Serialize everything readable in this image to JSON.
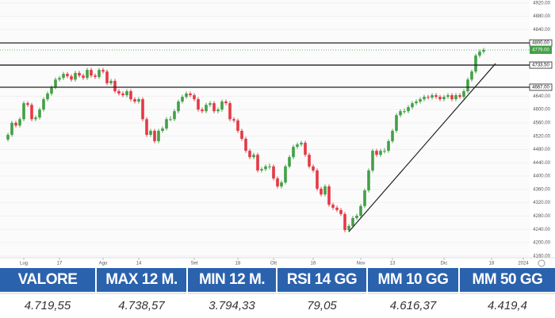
{
  "chart_data": {
    "type": "candlestick",
    "up_color": "#43a047",
    "down_color": "#e53945",
    "ylim": [
      4150,
      4929
    ],
    "yticks": [
      {
        "value": 4920,
        "label": "4920.00"
      },
      {
        "value": 4880,
        "label": "4880.00"
      },
      {
        "value": 4840,
        "label": "4840.00"
      },
      {
        "value": 4640,
        "label": "4640.00"
      },
      {
        "value": 4600,
        "label": "4600.00"
      },
      {
        "value": 4560,
        "label": "4560.00"
      },
      {
        "value": 4520,
        "label": "4520.00"
      },
      {
        "value": 4480,
        "label": "4480.00"
      },
      {
        "value": 4440,
        "label": "4440.00"
      },
      {
        "value": 4400,
        "label": "4400.00"
      },
      {
        "value": 4360,
        "label": "4360.00"
      },
      {
        "value": 4320,
        "label": "4320.00"
      },
      {
        "value": 4280,
        "label": "4280.00"
      },
      {
        "value": 4240,
        "label": "4240.00"
      },
      {
        "value": 4200,
        "label": "4200.00"
      },
      {
        "value": 4160,
        "label": "4160.00"
      }
    ],
    "xlim": [
      -2,
      132
    ],
    "xticks": [
      {
        "value": 4,
        "label": "Lug"
      },
      {
        "value": 13,
        "label": "17"
      },
      {
        "value": 24,
        "label": "Ago"
      },
      {
        "value": 33,
        "label": "14"
      },
      {
        "value": 47,
        "label": "Set"
      },
      {
        "value": 58,
        "label": "18"
      },
      {
        "value": 67,
        "label": "Ott"
      },
      {
        "value": 77,
        "label": "16"
      },
      {
        "value": 89,
        "label": "Nov"
      },
      {
        "value": 97,
        "label": "13"
      },
      {
        "value": 110,
        "label": "Dic"
      },
      {
        "value": 122,
        "label": "18"
      },
      {
        "value": 130,
        "label": "2024"
      }
    ],
    "levels": [
      {
        "value": 4800,
        "label": "4800.00"
      },
      {
        "value": 4733.5,
        "label": "4733.50"
      },
      {
        "value": 4667,
        "label": "4667.00"
      }
    ],
    "last_price": {
      "value": 4779,
      "label": "4779.00"
    },
    "trendline": {
      "x": [
        86,
        123
      ],
      "y": [
        4233,
        4738
      ]
    },
    "candles": [
      [
        4510,
        4530,
        4504,
        4524
      ],
      [
        4524,
        4566,
        4518,
        4560
      ],
      [
        4560,
        4566,
        4546,
        4552
      ],
      [
        4552,
        4577,
        4546,
        4571
      ],
      [
        4571,
        4625,
        4565,
        4619
      ],
      [
        4619,
        4625,
        4608,
        4614
      ],
      [
        4614,
        4620,
        4565,
        4571
      ],
      [
        4571,
        4582,
        4565,
        4576
      ],
      [
        4576,
        4606,
        4570,
        4600
      ],
      [
        4600,
        4637,
        4594,
        4631
      ],
      [
        4631,
        4654,
        4625,
        4648
      ],
      [
        4648,
        4673,
        4642,
        4667
      ],
      [
        4667,
        4696,
        4661,
        4690
      ],
      [
        4690,
        4701,
        4684,
        4695
      ],
      [
        4695,
        4713,
        4689,
        4707
      ],
      [
        4707,
        4713,
        4694,
        4700
      ],
      [
        4700,
        4706,
        4684,
        4690
      ],
      [
        4690,
        4716,
        4684,
        4710
      ],
      [
        4710,
        4716,
        4696,
        4702
      ],
      [
        4702,
        4708,
        4689,
        4695
      ],
      [
        4695,
        4725,
        4689,
        4719
      ],
      [
        4719,
        4725,
        4696,
        4702
      ],
      [
        4702,
        4708,
        4692,
        4698
      ],
      [
        4698,
        4725,
        4692,
        4719
      ],
      [
        4719,
        4725,
        4708,
        4714
      ],
      [
        4714,
        4720,
        4673,
        4679
      ],
      [
        4679,
        4692,
        4673,
        4686
      ],
      [
        4686,
        4692,
        4649,
        4655
      ],
      [
        4655,
        4661,
        4642,
        4648
      ],
      [
        4648,
        4654,
        4637,
        4643
      ],
      [
        4643,
        4661,
        4637,
        4655
      ],
      [
        4655,
        4661,
        4625,
        4631
      ],
      [
        4631,
        4637,
        4618,
        4624
      ],
      [
        4624,
        4637,
        4618,
        4631
      ],
      [
        4631,
        4637,
        4565,
        4571
      ],
      [
        4571,
        4577,
        4518,
        4524
      ],
      [
        4524,
        4542,
        4518,
        4536
      ],
      [
        4536,
        4542,
        4499,
        4505
      ],
      [
        4505,
        4542,
        4499,
        4536
      ],
      [
        4536,
        4549,
        4530,
        4543
      ],
      [
        4543,
        4577,
        4537,
        4571
      ],
      [
        4571,
        4580,
        4565,
        4571
      ],
      [
        4571,
        4601,
        4565,
        4595
      ],
      [
        4595,
        4630,
        4589,
        4624
      ],
      [
        4624,
        4644,
        4618,
        4638
      ],
      [
        4638,
        4654,
        4632,
        4648
      ],
      [
        4648,
        4654,
        4637,
        4643
      ],
      [
        4643,
        4649,
        4625,
        4631
      ],
      [
        4631,
        4637,
        4594,
        4600
      ],
      [
        4600,
        4606,
        4589,
        4595
      ],
      [
        4595,
        4620,
        4589,
        4614
      ],
      [
        4614,
        4625,
        4608,
        4619
      ],
      [
        4619,
        4625,
        4589,
        4595
      ],
      [
        4595,
        4606,
        4589,
        4600
      ],
      [
        4600,
        4630,
        4594,
        4624
      ],
      [
        4624,
        4630,
        4613,
        4619
      ],
      [
        4619,
        4625,
        4565,
        4571
      ],
      [
        4571,
        4577,
        4561,
        4567
      ],
      [
        4567,
        4573,
        4530,
        4536
      ],
      [
        4536,
        4542,
        4506,
        4512
      ],
      [
        4512,
        4518,
        4470,
        4476
      ],
      [
        4476,
        4482,
        4451,
        4457
      ],
      [
        4457,
        4470,
        4451,
        4464
      ],
      [
        4464,
        4470,
        4411,
        4417
      ],
      [
        4417,
        4427,
        4411,
        4421
      ],
      [
        4421,
        4435,
        4415,
        4429
      ],
      [
        4429,
        4438,
        4420,
        4429
      ],
      [
        4429,
        4435,
        4387,
        4393
      ],
      [
        4393,
        4399,
        4363,
        4369
      ],
      [
        4369,
        4387,
        4363,
        4381
      ],
      [
        4381,
        4435,
        4375,
        4429
      ],
      [
        4429,
        4463,
        4423,
        4457
      ],
      [
        4457,
        4494,
        4451,
        4488
      ],
      [
        4488,
        4501,
        4482,
        4495
      ],
      [
        4495,
        4506,
        4489,
        4500
      ],
      [
        4500,
        4506,
        4458,
        4464
      ],
      [
        4464,
        4470,
        4423,
        4429
      ],
      [
        4429,
        4435,
        4411,
        4417
      ],
      [
        4417,
        4423,
        4356,
        4362
      ],
      [
        4362,
        4368,
        4339,
        4345
      ],
      [
        4345,
        4375,
        4339,
        4369
      ],
      [
        4369,
        4375,
        4308,
        4314
      ],
      [
        4314,
        4320,
        4299,
        4305
      ],
      [
        4305,
        4311,
        4292,
        4298
      ],
      [
        4298,
        4304,
        4280,
        4286
      ],
      [
        4286,
        4292,
        4232,
        4238
      ],
      [
        4238,
        4256,
        4232,
        4250
      ],
      [
        4250,
        4280,
        4244,
        4274
      ],
      [
        4274,
        4287,
        4268,
        4281
      ],
      [
        4281,
        4316,
        4275,
        4310
      ],
      [
        4310,
        4363,
        4304,
        4357
      ],
      [
        4357,
        4423,
        4351,
        4417
      ],
      [
        4417,
        4482,
        4411,
        4476
      ],
      [
        4476,
        4482,
        4458,
        4464
      ],
      [
        4464,
        4482,
        4458,
        4476
      ],
      [
        4476,
        4484,
        4468,
        4476
      ],
      [
        4476,
        4511,
        4470,
        4505
      ],
      [
        4505,
        4542,
        4499,
        4536
      ],
      [
        4536,
        4589,
        4530,
        4583
      ],
      [
        4583,
        4601,
        4577,
        4595
      ],
      [
        4595,
        4603,
        4587,
        4595
      ],
      [
        4595,
        4613,
        4589,
        4607
      ],
      [
        4607,
        4625,
        4601,
        4619
      ],
      [
        4619,
        4630,
        4613,
        4624
      ],
      [
        4624,
        4637,
        4618,
        4631
      ],
      [
        4631,
        4644,
        4625,
        4638
      ],
      [
        4638,
        4644,
        4630,
        4636
      ],
      [
        4636,
        4649,
        4630,
        4643
      ],
      [
        4643,
        4649,
        4632,
        4638
      ],
      [
        4638,
        4644,
        4625,
        4631
      ],
      [
        4631,
        4644,
        4625,
        4638
      ],
      [
        4638,
        4649,
        4632,
        4643
      ],
      [
        4643,
        4649,
        4625,
        4631
      ],
      [
        4631,
        4649,
        4625,
        4643
      ],
      [
        4643,
        4649,
        4632,
        4638
      ],
      [
        4638,
        4661,
        4632,
        4655
      ],
      [
        4655,
        4696,
        4649,
        4690
      ],
      [
        4690,
        4720,
        4684,
        4714
      ],
      [
        4714,
        4768,
        4708,
        4762
      ],
      [
        4762,
        4780,
        4756,
        4774
      ],
      [
        4774,
        4785,
        4768,
        4779
      ]
    ]
  },
  "table": {
    "header": [
      "VALORE",
      "MAX 12 M.",
      "MIN 12 M.",
      "RSI 14 GG",
      "MM 10 GG",
      "MM 50 GG"
    ],
    "values": [
      "4.719,55",
      "4.738,57",
      "3.794,33",
      "79,05",
      "4.616,37",
      "4.419,4"
    ]
  }
}
